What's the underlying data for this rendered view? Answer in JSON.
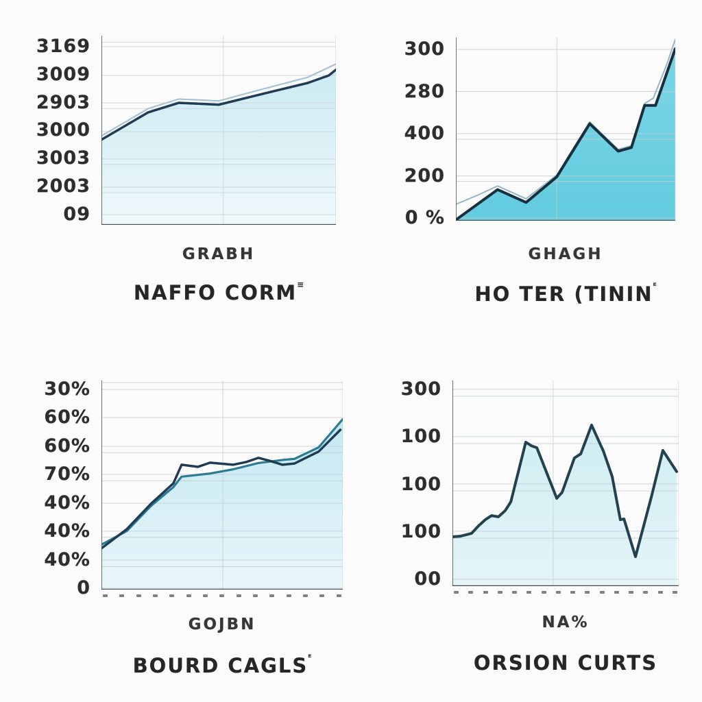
{
  "page": {
    "background_color": "#fbfbfb"
  },
  "chart_data": [
    {
      "name": "top-left",
      "type": "area",
      "title": "GRABH",
      "subtitle": "NAFFO CORM",
      "subtitle_sup": "≡",
      "y_tick_labels": [
        "3169",
        "3009",
        "2903",
        "3000",
        "3003",
        "2003",
        "09"
      ],
      "x_tick_count": 0,
      "ylim_note": "tick labels as printed; values normalized 0-100 of plot height",
      "axis_color": "#454e53",
      "grid_color": "#c9d2d6",
      "gridlines_y_pct": [
        96.5,
        94.2,
        79.0,
        64.5,
        61.5,
        49.3,
        34.8,
        32.0,
        19.9,
        17.0,
        5.4
      ],
      "gridlines_x_pct": [
        52,
        100
      ],
      "fill_gradient": [
        "#c8eaf2",
        "#eef8fb"
      ],
      "series": [
        {
          "name": "secondary-line",
          "color": "#a9c3d6",
          "width": 2.2,
          "fill": false,
          "points": [
            [
              0,
              47
            ],
            [
              20,
              61.5
            ],
            [
              33,
              66.5
            ],
            [
              42,
              66
            ],
            [
              50,
              65.5
            ],
            [
              68,
              71.5
            ],
            [
              88,
              78
            ],
            [
              100,
              85
            ]
          ]
        },
        {
          "name": "main-line",
          "color": "#1f3b55",
          "width": 3.5,
          "fill": true,
          "points": [
            [
              0,
              45
            ],
            [
              20,
              59.5
            ],
            [
              33,
              64.5
            ],
            [
              42,
              64
            ],
            [
              50,
              63.5
            ],
            [
              68,
              69
            ],
            [
              88,
              75
            ],
            [
              97,
              79
            ],
            [
              100,
              82
            ]
          ]
        }
      ]
    },
    {
      "name": "top-right",
      "type": "area",
      "title": "GHAGH",
      "subtitle": "HO TER (TININ",
      "subtitle_sup": "ᴱ",
      "y_tick_labels": [
        "300",
        "280",
        "400",
        "200",
        "0 %"
      ],
      "x_tick_count": 0,
      "axis_color": "#454e53",
      "grid_color": "#c2ccd1",
      "gridlines_y_pct": [
        93.6,
        70.6,
        47.6,
        44.5,
        24.5,
        21.5,
        1.5
      ],
      "gridlines_x_pct": [
        46,
        100
      ],
      "fill_gradient": [
        "#74d3e4",
        "#5ac9dd"
      ],
      "series": [
        {
          "name": "secondary-line",
          "color": "#93b7c9",
          "width": 2,
          "fill": false,
          "points": [
            [
              0,
              9
            ],
            [
              10,
              14
            ],
            [
              19,
              19
            ],
            [
              32,
              12
            ],
            [
              46,
              25
            ],
            [
              61,
              54
            ],
            [
              74,
              39
            ],
            [
              80,
              41
            ],
            [
              86,
              64
            ],
            [
              90,
              67
            ],
            [
              96,
              85
            ],
            [
              100,
              99
            ]
          ]
        },
        {
          "name": "main-line",
          "color": "#16303f",
          "width": 4,
          "fill": true,
          "points": [
            [
              0,
              0.5
            ],
            [
              19,
              17
            ],
            [
              32,
              10
            ],
            [
              46,
              24
            ],
            [
              61,
              53
            ],
            [
              74,
              38
            ],
            [
              80,
              40
            ],
            [
              86,
              63
            ],
            [
              91,
              63
            ],
            [
              100,
              94
            ]
          ]
        }
      ]
    },
    {
      "name": "bottom-left",
      "type": "area",
      "title": "GOJBN",
      "subtitle": "BOURD CAGLS",
      "subtitle_sup": "ᴱ",
      "y_tick_labels": [
        "30%",
        "60%",
        "60%",
        "70%",
        "40%",
        "40%",
        "40%",
        "0"
      ],
      "x_tick_count": 15,
      "axis_color": "#454e53",
      "grid_color": "#c4ced3",
      "gridlines_y_pct": [
        99,
        95.7,
        82.3,
        68.5,
        65.5,
        55.1,
        52,
        41.3,
        27.9,
        25,
        14.1,
        11,
        0.7
      ],
      "gridlines_x_pct": [
        50.3,
        100
      ],
      "fill_gradient": [
        "#c0e7f0",
        "#e9f6fa"
      ],
      "series": [
        {
          "name": "teal-line",
          "color": "#2c7d94",
          "width": 3.2,
          "fill": true,
          "points": [
            [
              0,
              21.5
            ],
            [
              10.5,
              28
            ],
            [
              20.5,
              40
            ],
            [
              29.8,
              49
            ],
            [
              33.2,
              54
            ],
            [
              45,
              55.5
            ],
            [
              54.5,
              57.5
            ],
            [
              65,
              60.5
            ],
            [
              75,
              62
            ],
            [
              80,
              62.5
            ],
            [
              90,
              68
            ],
            [
              100,
              81.5
            ]
          ]
        },
        {
          "name": "main-line",
          "color": "#203c54",
          "width": 3.5,
          "fill": false,
          "points": [
            [
              0,
              19.7
            ],
            [
              10.5,
              28.9
            ],
            [
              20.5,
              41
            ],
            [
              29.8,
              50.8
            ],
            [
              33.2,
              59.7
            ],
            [
              40,
              58.7
            ],
            [
              45,
              60.7
            ],
            [
              54.5,
              59.7
            ],
            [
              60,
              61
            ],
            [
              65,
              63
            ],
            [
              70,
              61.5
            ],
            [
              75,
              59.7
            ],
            [
              80,
              60.3
            ],
            [
              90,
              66
            ],
            [
              99,
              76.4
            ]
          ]
        }
      ]
    },
    {
      "name": "bottom-right",
      "type": "area",
      "title": "NA%",
      "subtitle": "ORSION CURTS",
      "subtitle_sup": "",
      "y_tick_labels": [
        "300",
        "100",
        "100",
        "100",
        "00"
      ],
      "x_tick_count": 16,
      "axis_color": "#454e53",
      "grid_color": "#c4ced3",
      "gridlines_y_pct": [
        95.7,
        92.3,
        72.7,
        69.3,
        49.7,
        46.3,
        26.7,
        23.3,
        3.3,
        0.5
      ],
      "gridlines_x_pct": [
        44.5,
        100
      ],
      "fill_gradient": [
        "#cdedf2",
        "#e3f4f7"
      ],
      "series": [
        {
          "name": "main-line",
          "color": "#24414f",
          "width": 4,
          "fill": true,
          "points": [
            [
              0,
              24
            ],
            [
              3.6,
              24.3
            ],
            [
              8.5,
              25.7
            ],
            [
              11.5,
              29.3
            ],
            [
              14.5,
              32.3
            ],
            [
              17.3,
              34.3
            ],
            [
              20.3,
              33.7
            ],
            [
              23.3,
              36.7
            ],
            [
              25.8,
              41
            ],
            [
              32.4,
              70
            ],
            [
              34.8,
              68.3
            ],
            [
              37.3,
              67.3
            ],
            [
              46.1,
              42.7
            ],
            [
              48.5,
              45.7
            ],
            [
              53.9,
              62.3
            ],
            [
              56.7,
              64.3
            ],
            [
              61.5,
              78.3
            ],
            [
              66.7,
              65.7
            ],
            [
              70.6,
              53.3
            ],
            [
              74.2,
              32.3
            ],
            [
              75.8,
              32.7
            ],
            [
              80.9,
              14.3
            ],
            [
              87.9,
              43.3
            ],
            [
              93,
              66
            ],
            [
              99.1,
              55.7
            ]
          ]
        }
      ]
    }
  ]
}
